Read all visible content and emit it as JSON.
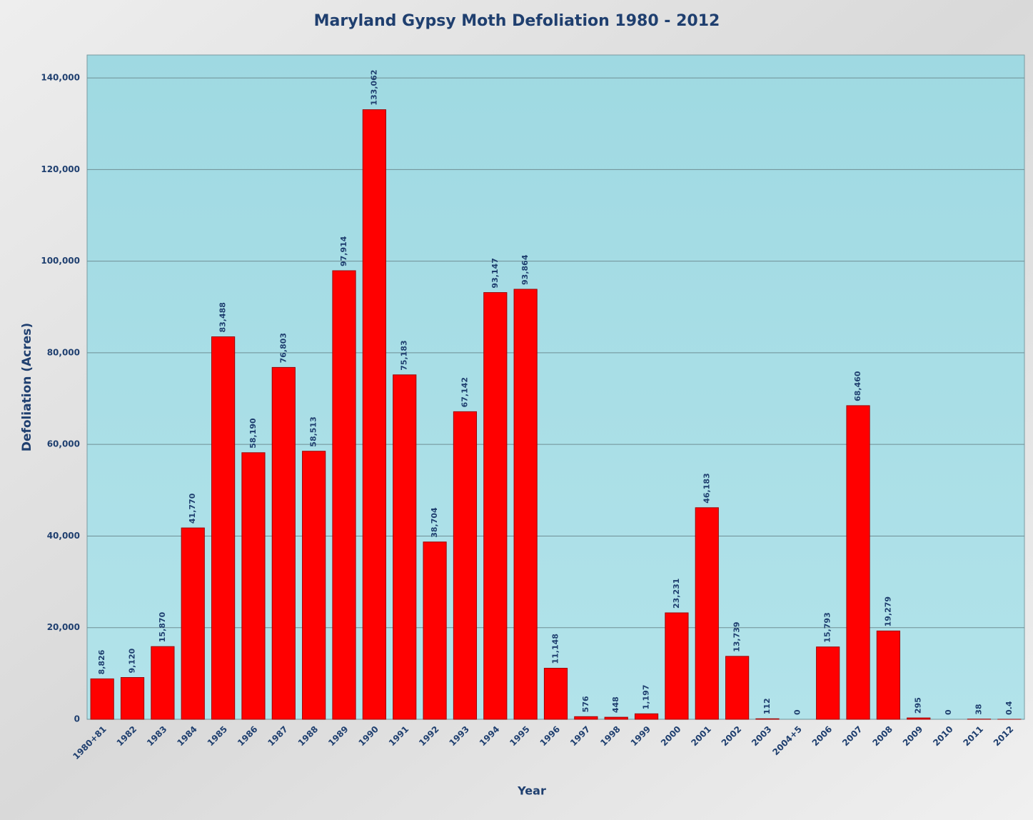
{
  "chart_data": {
    "type": "bar",
    "title": "Maryland Gypsy Moth Defoliation 1980 - 2012",
    "x_label": "Year",
    "y_label": "Defoliation (Acres)",
    "categories": [
      "1980+81",
      "1982",
      "1983",
      "1984",
      "1985",
      "1986",
      "1987",
      "1988",
      "1989",
      "1990",
      "1991",
      "1992",
      "1993",
      "1994",
      "1995",
      "1996",
      "1997",
      "1998",
      "1999",
      "2000",
      "2001",
      "2002",
      "2003",
      "2004+5",
      "2006",
      "2007",
      "2008",
      "2009",
      "2010",
      "2011",
      "2012"
    ],
    "values": [
      8826,
      9120,
      15870,
      41770,
      83488,
      58190,
      76803,
      58513,
      97914,
      133062,
      75183,
      38704,
      67142,
      93147,
      93864,
      11148,
      576,
      448,
      1197,
      23231,
      46183,
      13739,
      112,
      0,
      15793,
      68460,
      19279,
      295,
      0,
      38,
      0.4
    ],
    "value_labels": [
      "8,826",
      "9,120",
      "15,870",
      "41,770",
      "83,488",
      "58,190",
      "76,803",
      "58,513",
      "97,914",
      "133,062",
      "75,183",
      "38,704",
      "67,142",
      "93,147",
      "93,864",
      "11,148",
      "576",
      "448",
      "1,197",
      "23,231",
      "46,183",
      "13,739",
      "112",
      "0",
      "15,793",
      "68,460",
      "19,279",
      "295",
      "0",
      "38",
      "0.4"
    ],
    "color": "#ff0000",
    "ylim": [
      0,
      145000
    ],
    "yticks": [
      0,
      {
        "value": 20000,
        "label": "20,000"
      },
      {
        "value": 40000,
        "label": "40,000"
      },
      {
        "value": 60000,
        "label": "60,000"
      },
      {
        "value": 80000,
        "label": "80,000"
      },
      {
        "value": 100000,
        "label": "100,000"
      },
      {
        "value": 120000,
        "label": "120,000"
      },
      {
        "value": 140000,
        "label": "140,000"
      }
    ],
    "grid": true
  }
}
